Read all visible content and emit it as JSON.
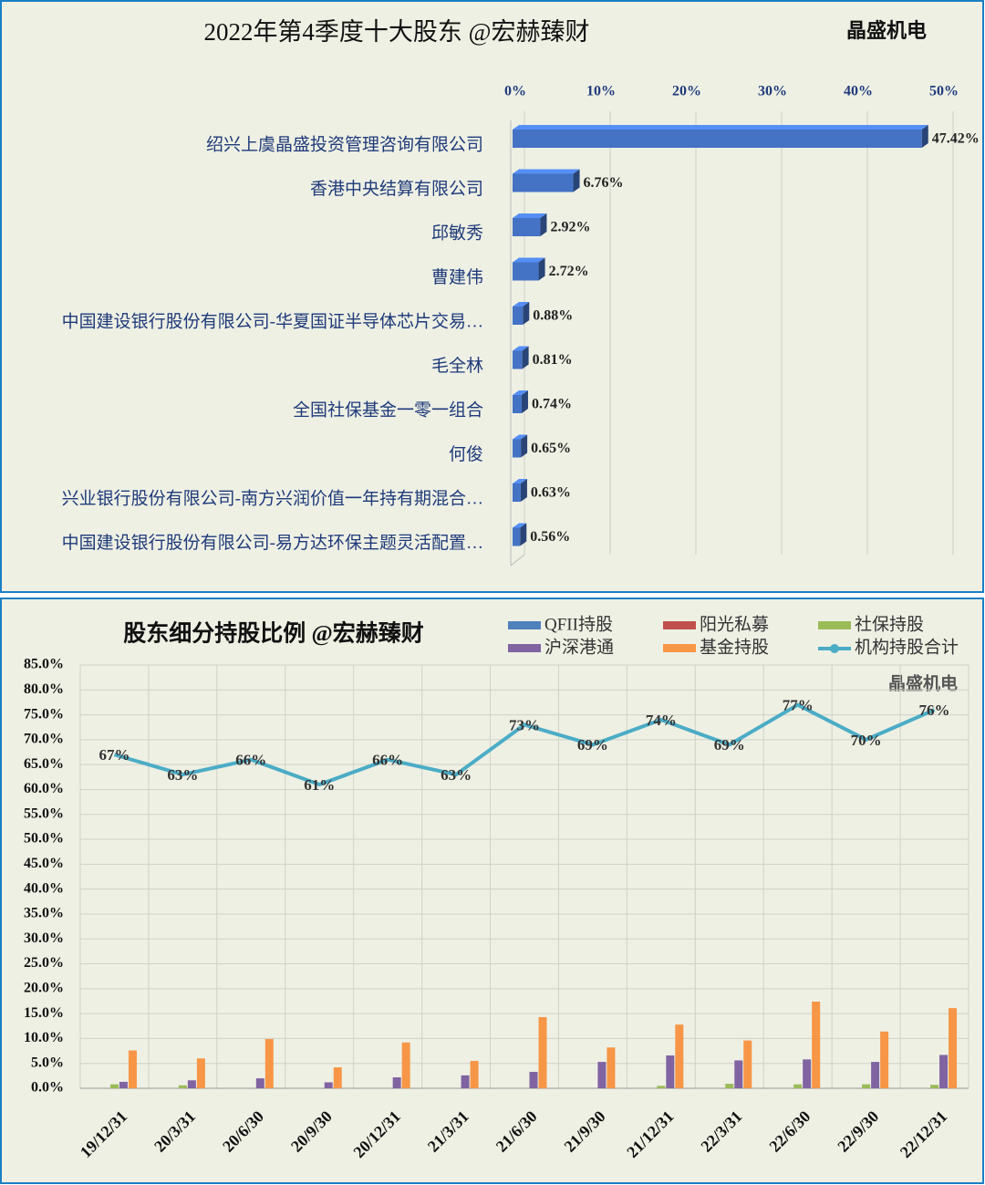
{
  "chart_data": [
    {
      "type": "hbar3d",
      "title": "2022年第4季度十大股东 @宏赫臻财",
      "annotation": "晶盛机电",
      "categories": [
        "绍兴上虞晶盛投资管理咨询有限公司",
        "香港中央结算有限公司",
        "邱敏秀",
        "曹建伟",
        "中国建设银行股份有限公司-华夏国证半导体芯片交易…",
        "毛全林",
        "全国社保基金一零一组合",
        "何俊",
        "兴业银行股份有限公司-南方兴润价值一年持有期混合…",
        "中国建设银行股份有限公司-易方达环保主题灵活配置…"
      ],
      "values": [
        47.42,
        6.76,
        2.92,
        2.72,
        0.88,
        0.81,
        0.74,
        0.65,
        0.63,
        0.56
      ],
      "value_labels": [
        "47.42%",
        "6.76%",
        "2.92%",
        "2.72%",
        "0.88%",
        "0.81%",
        "0.74%",
        "0.65%",
        "0.63%",
        "0.56%"
      ],
      "color": "#4472c4",
      "xlim": [
        0,
        50
      ],
      "xticks": [
        {
          "value": 0,
          "label": "0%"
        },
        {
          "value": 10,
          "label": "10%"
        },
        {
          "value": 20,
          "label": "20%"
        },
        {
          "value": 30,
          "label": "30%"
        },
        {
          "value": 40,
          "label": "40%"
        },
        {
          "value": 50,
          "label": "50%"
        }
      ],
      "grid": true
    },
    {
      "type": "bar_line",
      "title": "股东细分持股比例 @宏赫臻财",
      "annotation": "晶盛机电",
      "categories": [
        "19/12/31",
        "20/3/31",
        "20/6/30",
        "20/9/30",
        "20/12/31",
        "21/3/31",
        "21/6/30",
        "21/9/30",
        "21/12/31",
        "22/3/31",
        "22/6/30",
        "22/9/30",
        "22/12/31"
      ],
      "series": [
        {
          "name": "QFII持股",
          "color": "#4f81bd",
          "values": [
            0,
            0,
            0,
            0,
            0,
            0,
            0,
            0,
            0,
            0,
            0,
            0,
            0
          ]
        },
        {
          "name": "阳光私募",
          "color": "#c0504d",
          "values": [
            0,
            0,
            0,
            0,
            0,
            0,
            0,
            0,
            0,
            0,
            0,
            0,
            0
          ]
        },
        {
          "name": "社保持股",
          "color": "#9bbb59",
          "values": [
            0.8,
            0.6,
            0,
            0,
            0,
            0,
            0,
            0,
            0.5,
            0.9,
            0.8,
            0.8,
            0.7
          ]
        },
        {
          "name": "沪深港通",
          "color": "#8064a2",
          "values": [
            1.3,
            1.6,
            2.0,
            1.2,
            2.2,
            2.6,
            3.3,
            5.3,
            6.6,
            5.6,
            5.8,
            5.3,
            6.7
          ]
        },
        {
          "name": "基金持股",
          "color": "#f79646",
          "values": [
            7.6,
            6.0,
            9.9,
            4.2,
            9.2,
            5.5,
            14.3,
            8.2,
            12.8,
            9.6,
            17.4,
            11.4,
            16.1
          ]
        },
        {
          "name": "机构持股合计",
          "color": "#4bacc6",
          "kind": "line",
          "values": [
            67,
            63,
            66,
            61,
            66,
            63,
            73,
            69,
            74,
            69,
            77,
            70,
            76
          ],
          "value_labels": [
            "67%",
            "63%",
            "66%",
            "61%",
            "66%",
            "63%",
            "73%",
            "69%",
            "74%",
            "69%",
            "77%",
            "70%",
            "76%"
          ]
        }
      ],
      "ylim": [
        0,
        85
      ],
      "yticks": [
        {
          "value": 0,
          "label": "0.0%"
        },
        {
          "value": 5,
          "label": "5.0%"
        },
        {
          "value": 10,
          "label": "10.0%"
        },
        {
          "value": 15,
          "label": "15.0%"
        },
        {
          "value": 20,
          "label": "20.0%"
        },
        {
          "value": 25,
          "label": "25.0%"
        },
        {
          "value": 30,
          "label": "30.0%"
        },
        {
          "value": 35,
          "label": "35.0%"
        },
        {
          "value": 40,
          "label": "40.0%"
        },
        {
          "value": 45,
          "label": "45.0%"
        },
        {
          "value": 50,
          "label": "50.0%"
        },
        {
          "value": 55,
          "label": "55.0%"
        },
        {
          "value": 60,
          "label": "60.0%"
        },
        {
          "value": 65,
          "label": "65.0%"
        },
        {
          "value": 70,
          "label": "70.0%"
        },
        {
          "value": 75,
          "label": "75.0%"
        },
        {
          "value": 80,
          "label": "80.0%"
        },
        {
          "value": 85,
          "label": "85.0%"
        }
      ],
      "grid": true,
      "legend": "top-right"
    }
  ]
}
